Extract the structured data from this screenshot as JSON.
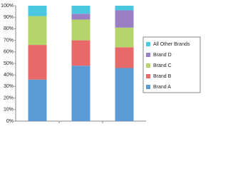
{
  "chart_data": {
    "type": "stacked-bar",
    "categories": [
      null,
      null,
      null
    ],
    "series": [
      {
        "name": "Brand A",
        "color": "#5b9bd5",
        "values": [
          36,
          48,
          46
        ]
      },
      {
        "name": "Brand B",
        "color": "#e8696a",
        "values": [
          30,
          22,
          18
        ]
      },
      {
        "name": "Brand C",
        "color": "#b5d56a",
        "values": [
          25,
          18,
          17
        ]
      },
      {
        "name": "Brand D",
        "color": "#9b7fc4",
        "values": [
          0,
          5,
          15
        ]
      },
      {
        "name": "All  Other Brands",
        "color": "#4bc8e0",
        "values": [
          9,
          7,
          4
        ]
      }
    ],
    "ylim": [
      0,
      100
    ],
    "yticks": [
      {
        "value": 0,
        "label": "0%"
      },
      {
        "value": 10,
        "label": "10%"
      },
      {
        "value": 20,
        "label": "20%"
      },
      {
        "value": 30,
        "label": "30%"
      },
      {
        "value": 40,
        "label": "40%"
      },
      {
        "value": 50,
        "label": "50%"
      },
      {
        "value": 60,
        "label": "60%"
      },
      {
        "value": 70,
        "label": "70%"
      },
      {
        "value": 80,
        "label": "80%"
      },
      {
        "value": 90,
        "label": "90%"
      },
      {
        "value": 100,
        "label": "100%"
      }
    ],
    "legend": "right"
  }
}
